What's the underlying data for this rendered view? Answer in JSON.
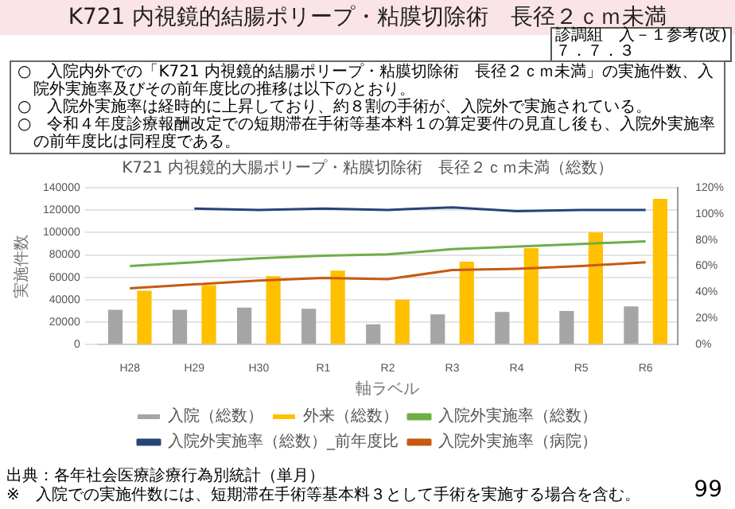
{
  "chart_data": {
    "type": "bar",
    "title": "K721 内視鏡的結腸ポリープ・粘膜切除術　長径２ｃｍ未満",
    "subtitle": "K721 内視鏡的大腸ポリープ・粘膜切除術　長径２ｃｍ未満（総数）",
    "xlabel": "軸ラベル",
    "ylabel": "実施件数",
    "annotations": [
      "診調組　入－１参考(改)\n７．７．３",
      "○　入院内外での「K721 内視鏡的結腸ポリープ・粘膜切除術　長径２ｃｍ未満」の実施件数、入院外実施率及びその前年度比の推移は以下のとおり。",
      "○　入院外実施率は経時的に上昇しており、約８割の手術が、入院外で実施されている。",
      "○　令和４年度診療報酬改定での短期滞在手術等基本料１の算定要件の見直し後も、入院外実施率の前年度比は同程度である。",
      "出典：各年社会医療診療行為別統計（単月）",
      "※　入院での実施件数には、短期滞在手術等基本料３として手術を実施する場合を含む。",
      "99"
    ],
    "categories": [
      "H28",
      "H29",
      "H30",
      "R1",
      "R2",
      "R3",
      "R4",
      "R5",
      "R6"
    ],
    "series": [
      {
        "name": "入院（総数）",
        "color": "#a5a5a5",
        "values": [
          31000,
          31000,
          33000,
          32000,
          18000,
          27000,
          29000,
          30000,
          34000
        ]
      },
      {
        "name": "外来（総数）",
        "color": "#ffc000",
        "values": [
          48000,
          53000,
          61000,
          66000,
          40000,
          74000,
          86000,
          100000,
          130000
        ]
      },
      {
        "name": "入院外実施率（総数）",
        "type": "line",
        "axis": "y2",
        "color": "#70ad47",
        "values": [
          60,
          63,
          66,
          68,
          69,
          73,
          75,
          77,
          79
        ]
      },
      {
        "name": "入院外実施率（総数）_前年度比",
        "type": "line",
        "axis": "y2",
        "color": "#264478",
        "values": [
          null,
          104,
          103,
          104,
          103,
          105,
          102,
          103,
          103
        ]
      },
      {
        "name": "入院外実施率（病院）",
        "type": "line",
        "axis": "y2",
        "color": "#c55a11",
        "values": [
          43,
          46,
          49,
          51,
          50,
          57,
          58,
          60,
          63
        ]
      }
    ],
    "ylim": [
      0,
      140000
    ],
    "yticks": [
      0,
      20000,
      40000,
      60000,
      80000,
      100000,
      120000,
      140000
    ],
    "y2lim": [
      0,
      120
    ],
    "y2ticks": [
      {
        "value": 0,
        "label": "0%"
      },
      {
        "value": 20,
        "label": "20%"
      },
      {
        "value": 40,
        "label": "40%"
      },
      {
        "value": 60,
        "label": "60%"
      },
      {
        "value": 80,
        "label": "80%"
      },
      {
        "value": 100,
        "label": "100%"
      },
      {
        "value": 120,
        "label": "120%"
      }
    ],
    "grid": "y",
    "legend": "bottom",
    "marker": "none",
    "line_style": "solid"
  }
}
